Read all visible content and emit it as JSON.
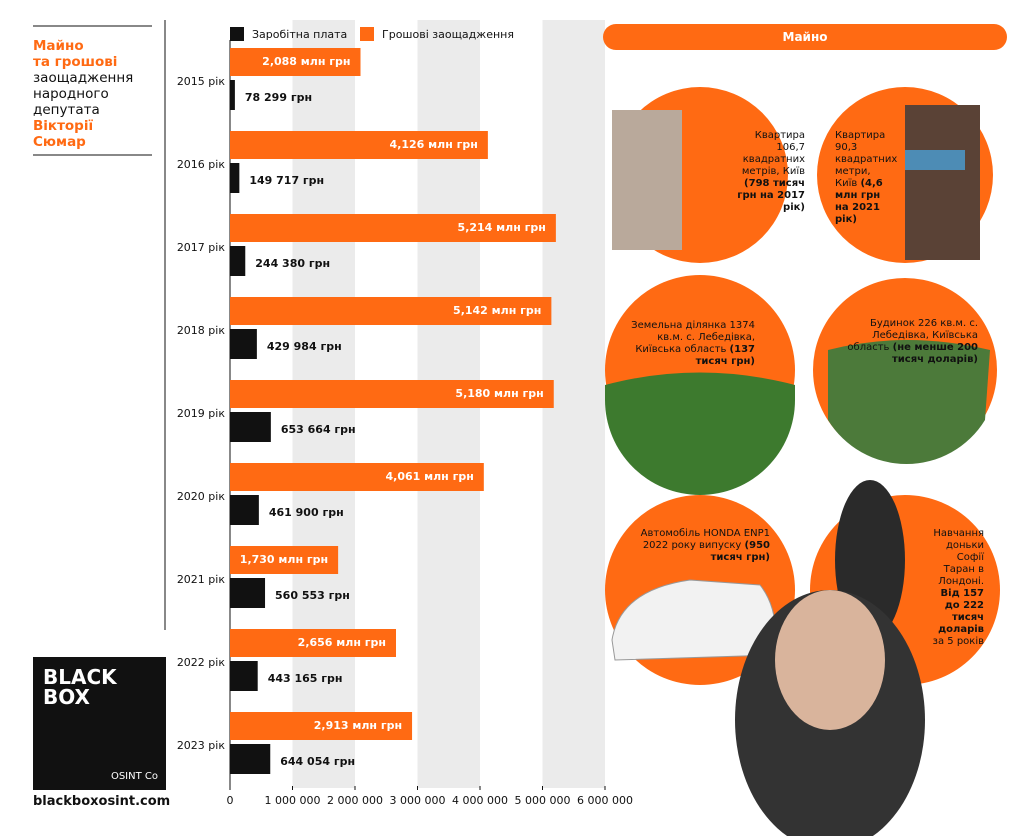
{
  "chart_data": {
    "type": "hbar",
    "categories": [
      "2015 рік",
      "2016 рік",
      "2017 рік",
      "2018 рік",
      "2019 рік",
      "2020 рік",
      "2021 рік",
      "2022 рік",
      "2023 рік"
    ],
    "series": [
      {
        "name": "Заробітна плата",
        "color": "#111111",
        "values": [
          78299,
          149717,
          244380,
          429984,
          653664,
          461900,
          560553,
          443165,
          644054
        ],
        "value_labels": [
          "78 299 грн",
          "149 717 грн",
          "244 380 грн",
          "429 984 грн",
          "653 664 грн",
          "461 900 грн",
          "560 553 грн",
          "443 165 грн",
          "644 054 грн"
        ]
      },
      {
        "name": "Грошові заощадження",
        "color": "#ff6a13",
        "values": [
          2088000,
          4126000,
          5214000,
          5142000,
          5180000,
          4061000,
          1730000,
          2656000,
          2913000
        ],
        "value_labels": [
          "2,088 млн грн",
          "4,126 млн грн",
          "5,214 млн грн",
          "5,142 млн грн",
          "5,180 млн грн",
          "4,061 млн грн",
          "1,730 млн грн",
          "2,656 млн грн",
          "2,913 млн грн"
        ]
      }
    ],
    "xlim": [
      0,
      6000000
    ],
    "xticks": [
      0,
      {
        "value": 1000000,
        "label": "1 000 000"
      },
      {
        "value": 2000000,
        "label": "2 000 000"
      },
      {
        "value": 3000000,
        "label": "3 000 000"
      },
      {
        "value": 4000000,
        "label": "4 000 000"
      },
      {
        "value": 5000000,
        "label": "5 000 000"
      },
      {
        "value": 6000000,
        "label": "6 000 000"
      }
    ],
    "grid": true
  },
  "sidebar": {
    "title_lines": [
      "Майно",
      "та грошові",
      "заощадження",
      "народного",
      "депутата",
      "Вікторії",
      "Сюмар"
    ],
    "logo": [
      "BLACK",
      "BOX"
    ],
    "logo_sub": "OSINT Co",
    "site": "blackboxosint.com"
  },
  "property": {
    "header": "Майно",
    "items": [
      [
        {
          "text": "Квартира 106,7 квадратних метрів, Київ",
          "bold": false
        },
        {
          "text": "(798 тисяч грн на 2017 рік)",
          "bold": true
        }
      ],
      [
        {
          "text": "Квартира 90,3 квадратних метри, Київ",
          "bold": false
        },
        {
          "text": "(4,6 млн грн на 2021 рік)",
          "bold": true
        }
      ],
      [
        {
          "text": "Земельна ділянка 1374 кв.м. с. Лебедівка, Київська область",
          "bold": false
        },
        {
          "text": "(137 тисяч грн)",
          "bold": true
        }
      ],
      [
        {
          "text": "Будинок 226 кв.м. с. Лебедівка, Київська область",
          "bold": false
        },
        {
          "text": "(не менше 200 тисяч доларів)",
          "bold": true
        }
      ],
      [
        {
          "text": "Автомобіль HONDA ENP1 2022 року випуску",
          "bold": false
        },
        {
          "text": "(950 тисяч грн)",
          "bold": true
        }
      ],
      [
        {
          "text": "Навчання доньки Софії Таран в Лондоні.",
          "bold": false
        },
        {
          "text": "Від 157 до 222 тисяч доларів",
          "bold": true
        },
        {
          "text": "за 5 років",
          "bold": false
        }
      ]
    ]
  }
}
